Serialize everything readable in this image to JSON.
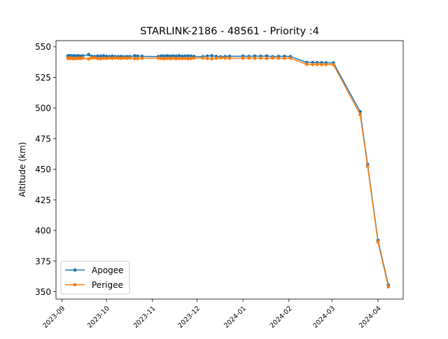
{
  "chart_data": {
    "type": "line",
    "title": "STARLINK-2186 - 48561 - Priority :4",
    "xlabel": "",
    "ylabel": "Altitude (km)",
    "x_axis": "date",
    "xlim": [
      "2023-08-28",
      "2024-04-18"
    ],
    "ylim": [
      344,
      555
    ],
    "grid": false,
    "legend_position": "lower-left",
    "x_ticks": [
      {
        "date": "2023-09-01",
        "label": "2023-09"
      },
      {
        "date": "2023-10-01",
        "label": "2023-10"
      },
      {
        "date": "2023-11-01",
        "label": "2023-11"
      },
      {
        "date": "2023-12-01",
        "label": "2023-12"
      },
      {
        "date": "2024-01-01",
        "label": "2024-01"
      },
      {
        "date": "2024-02-01",
        "label": "2024-02"
      },
      {
        "date": "2024-03-01",
        "label": "2024-03"
      },
      {
        "date": "2024-04-01",
        "label": "2024-04"
      }
    ],
    "y_ticks": [
      350,
      375,
      400,
      425,
      450,
      475,
      500,
      525,
      550
    ],
    "series": [
      {
        "name": "Apogee",
        "color": "#1f77b4",
        "points": [
          [
            "2023-09-05",
            542.5
          ],
          [
            "2023-09-06",
            542.8
          ],
          [
            "2023-09-07",
            542.6
          ],
          [
            "2023-09-08",
            542.4
          ],
          [
            "2023-09-09",
            542.7
          ],
          [
            "2023-09-10",
            542.5
          ],
          [
            "2023-09-11",
            542.3
          ],
          [
            "2023-09-12",
            542.6
          ],
          [
            "2023-09-13",
            542.4
          ],
          [
            "2023-09-14",
            542.2
          ],
          [
            "2023-09-15",
            542.5
          ],
          [
            "2023-09-19",
            543.6
          ],
          [
            "2023-09-21",
            542.2
          ],
          [
            "2023-09-23",
            542.0
          ],
          [
            "2023-09-25",
            542.4
          ],
          [
            "2023-09-27",
            542.3
          ],
          [
            "2023-09-29",
            542.6
          ],
          [
            "2023-10-01",
            542.2
          ],
          [
            "2023-10-03",
            542.0
          ],
          [
            "2023-10-05",
            542.3
          ],
          [
            "2023-10-07",
            542.0
          ],
          [
            "2023-10-09",
            541.9
          ],
          [
            "2023-10-11",
            542.1
          ],
          [
            "2023-10-13",
            541.8
          ],
          [
            "2023-10-15",
            542.0
          ],
          [
            "2023-10-17",
            541.9
          ],
          [
            "2023-10-20",
            542.6
          ],
          [
            "2023-10-22",
            542.4
          ],
          [
            "2023-10-25",
            542.2
          ],
          [
            "2023-11-05",
            542.0
          ],
          [
            "2023-11-07",
            542.5
          ],
          [
            "2023-11-09",
            542.4
          ],
          [
            "2023-11-11",
            542.6
          ],
          [
            "2023-11-13",
            542.3
          ],
          [
            "2023-11-15",
            542.5
          ],
          [
            "2023-11-17",
            542.3
          ],
          [
            "2023-11-19",
            542.6
          ],
          [
            "2023-11-21",
            542.2
          ],
          [
            "2023-11-23",
            542.4
          ],
          [
            "2023-11-25",
            542.5
          ],
          [
            "2023-11-27",
            542.3
          ],
          [
            "2023-11-29",
            542.1
          ],
          [
            "2023-12-05",
            541.9
          ],
          [
            "2023-12-08",
            542.4
          ],
          [
            "2023-12-11",
            542.7
          ],
          [
            "2023-12-14",
            542.1
          ],
          [
            "2023-12-17",
            541.8
          ],
          [
            "2023-12-20",
            542.0
          ],
          [
            "2023-12-23",
            542.2
          ],
          [
            "2024-01-01",
            542.3
          ],
          [
            "2024-01-05",
            542.1
          ],
          [
            "2024-01-09",
            542.4
          ],
          [
            "2024-01-13",
            542.2
          ],
          [
            "2024-01-17",
            542.5
          ],
          [
            "2024-01-21",
            541.9
          ],
          [
            "2024-01-25",
            542.1
          ],
          [
            "2024-01-29",
            542.2
          ],
          [
            "2024-02-02",
            542.0
          ],
          [
            "2024-02-13",
            537.2
          ],
          [
            "2024-02-17",
            537.1
          ],
          [
            "2024-02-20",
            537.0
          ],
          [
            "2024-02-23",
            537.0
          ],
          [
            "2024-02-26",
            536.9
          ],
          [
            "2024-03-02",
            536.8
          ],
          [
            "2024-03-20",
            497.0
          ],
          [
            "2024-03-25",
            454.0
          ],
          [
            "2024-04-01",
            392.0
          ],
          [
            "2024-04-08",
            355.5
          ]
        ]
      },
      {
        "name": "Perigee",
        "color": "#ff7f0e",
        "points": [
          [
            "2023-09-05",
            540.6
          ],
          [
            "2023-09-06",
            540.4
          ],
          [
            "2023-09-07",
            540.8
          ],
          [
            "2023-09-08",
            540.5
          ],
          [
            "2023-09-09",
            540.2
          ],
          [
            "2023-09-10",
            540.6
          ],
          [
            "2023-09-11",
            540.3
          ],
          [
            "2023-09-12",
            540.7
          ],
          [
            "2023-09-13",
            540.4
          ],
          [
            "2023-09-14",
            540.5
          ],
          [
            "2023-09-15",
            540.8
          ],
          [
            "2023-09-19",
            540.0
          ],
          [
            "2023-09-21",
            540.8
          ],
          [
            "2023-09-23",
            541.0
          ],
          [
            "2023-09-25",
            540.4
          ],
          [
            "2023-09-27",
            540.2
          ],
          [
            "2023-09-29",
            540.6
          ],
          [
            "2023-10-01",
            540.4
          ],
          [
            "2023-10-03",
            540.8
          ],
          [
            "2023-10-05",
            540.5
          ],
          [
            "2023-10-07",
            540.9
          ],
          [
            "2023-10-09",
            540.7
          ],
          [
            "2023-10-11",
            540.5
          ],
          [
            "2023-10-13",
            540.8
          ],
          [
            "2023-10-15",
            540.6
          ],
          [
            "2023-10-17",
            540.8
          ],
          [
            "2023-10-20",
            540.3
          ],
          [
            "2023-10-22",
            540.4
          ],
          [
            "2023-10-25",
            540.6
          ],
          [
            "2023-11-05",
            540.6
          ],
          [
            "2023-11-07",
            540.4
          ],
          [
            "2023-11-09",
            540.2
          ],
          [
            "2023-11-11",
            540.5
          ],
          [
            "2023-11-13",
            540.3
          ],
          [
            "2023-11-15",
            540.6
          ],
          [
            "2023-11-17",
            540.2
          ],
          [
            "2023-11-19",
            540.4
          ],
          [
            "2023-11-21",
            540.3
          ],
          [
            "2023-11-23",
            540.5
          ],
          [
            "2023-11-25",
            540.2
          ],
          [
            "2023-11-27",
            540.4
          ],
          [
            "2023-11-29",
            540.7
          ],
          [
            "2023-12-05",
            540.8
          ],
          [
            "2023-12-08",
            540.4
          ],
          [
            "2023-12-11",
            540.2
          ],
          [
            "2023-12-14",
            540.6
          ],
          [
            "2023-12-17",
            540.9
          ],
          [
            "2023-12-20",
            540.7
          ],
          [
            "2023-12-23",
            540.6
          ],
          [
            "2024-01-01",
            540.7
          ],
          [
            "2024-01-05",
            540.8
          ],
          [
            "2024-01-09",
            540.6
          ],
          [
            "2024-01-13",
            540.7
          ],
          [
            "2024-01-17",
            540.4
          ],
          [
            "2024-01-21",
            540.8
          ],
          [
            "2024-01-25",
            540.6
          ],
          [
            "2024-01-29",
            540.5
          ],
          [
            "2024-02-02",
            540.6
          ],
          [
            "2024-02-13",
            535.6
          ],
          [
            "2024-02-17",
            535.5
          ],
          [
            "2024-02-20",
            535.6
          ],
          [
            "2024-02-23",
            535.4
          ],
          [
            "2024-02-26",
            535.5
          ],
          [
            "2024-03-02",
            535.3
          ],
          [
            "2024-03-20",
            494.5
          ],
          [
            "2024-03-25",
            452.5
          ],
          [
            "2024-04-01",
            390.5
          ],
          [
            "2024-04-08",
            354.0
          ]
        ]
      }
    ]
  }
}
